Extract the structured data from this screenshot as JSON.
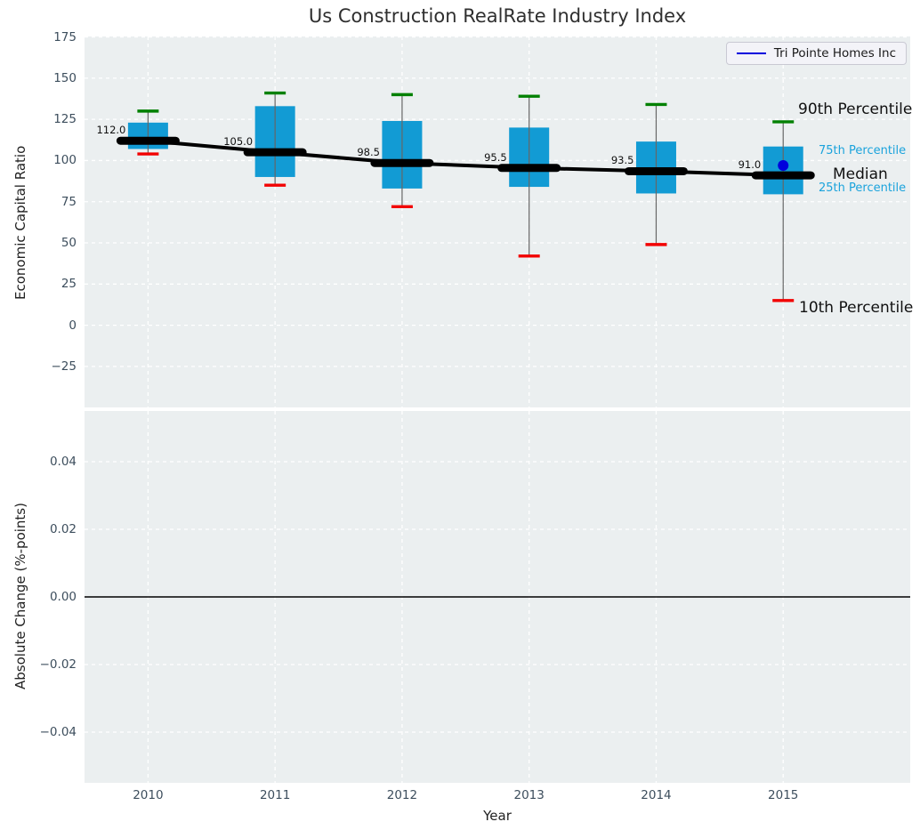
{
  "title": "Us Construction RealRate Industry Index",
  "legend": {
    "label": "Tri Pointe Homes Inc",
    "line_color": "#0000dd"
  },
  "annotations": {
    "p90_label": "90th Percentile",
    "p75_label": "75th Percentile",
    "median_label": "Median",
    "p25_label": "25th Percentile",
    "p10_label": "10th Percentile"
  },
  "colors": {
    "axes_bg": "#ebeff0",
    "grid": "#ffffff",
    "box_fill": "#129bd4",
    "whisker": "#666666",
    "cap_top": "#008000",
    "cap_bottom": "#f20000",
    "median_line": "#000000",
    "company_marker": "#0000dd",
    "tick_text": "#3d4e5d",
    "percentile_text": "#1ba3dc",
    "zero_line": "#000000"
  },
  "chart_data": [
    {
      "type": "box",
      "panel": "top",
      "title": "Us Construction RealRate Industry Index",
      "xlabel": "Year",
      "ylabel": "Economic Capital Ratio",
      "categories": [
        2010,
        2011,
        2012,
        2013,
        2014,
        2015
      ],
      "series": [
        {
          "name": "90th Percentile",
          "values": [
            130,
            141,
            140,
            139,
            134,
            123.5
          ]
        },
        {
          "name": "75th Percentile",
          "values": [
            123,
            133,
            124,
            120,
            111.5,
            108.5
          ]
        },
        {
          "name": "Median",
          "values": [
            112.0,
            105.0,
            98.5,
            95.5,
            93.5,
            91.0
          ]
        },
        {
          "name": "25th Percentile",
          "values": [
            107,
            90,
            83,
            84,
            80,
            79.5
          ]
        },
        {
          "name": "10th Percentile",
          "values": [
            104,
            85,
            72,
            42,
            49,
            15
          ]
        }
      ],
      "median_labels": [
        "112.0",
        "105.0",
        "98.5",
        "95.5",
        "93.5",
        "91.0"
      ],
      "company_point": {
        "name": "Tri Pointe Homes Inc",
        "x": 2015,
        "y": 97
      },
      "xlim": [
        2009.5,
        2016.0
      ],
      "ylim": [
        -49.9,
        175.3
      ],
      "yticks": [
        175,
        150,
        125,
        100,
        75,
        50,
        25,
        0,
        -25
      ],
      "ytick_labels": [
        "175",
        "150",
        "125",
        "100",
        "75",
        "50",
        "25",
        "0",
        "−25"
      ],
      "xtick_labels": [
        "2010",
        "2011",
        "2012",
        "2013",
        "2014",
        "2015"
      ],
      "grid": "white dashed, on",
      "legend_position": "upper right"
    },
    {
      "type": "line",
      "panel": "bottom",
      "xlabel": "Year",
      "ylabel": "Absolute Change (%-points)",
      "categories": [
        2010,
        2011,
        2012,
        2013,
        2014,
        2015
      ],
      "values": [],
      "zero_line": 0.0,
      "xlim": [
        2009.5,
        2016.0
      ],
      "ylim": [
        -0.055,
        0.055
      ],
      "yticks": [
        0.04,
        0.02,
        0.0,
        -0.02,
        -0.04
      ],
      "ytick_labels": [
        "0.04",
        "0.02",
        "0.00",
        "−0.02",
        "−0.04"
      ],
      "grid": "white dashed, on"
    }
  ]
}
